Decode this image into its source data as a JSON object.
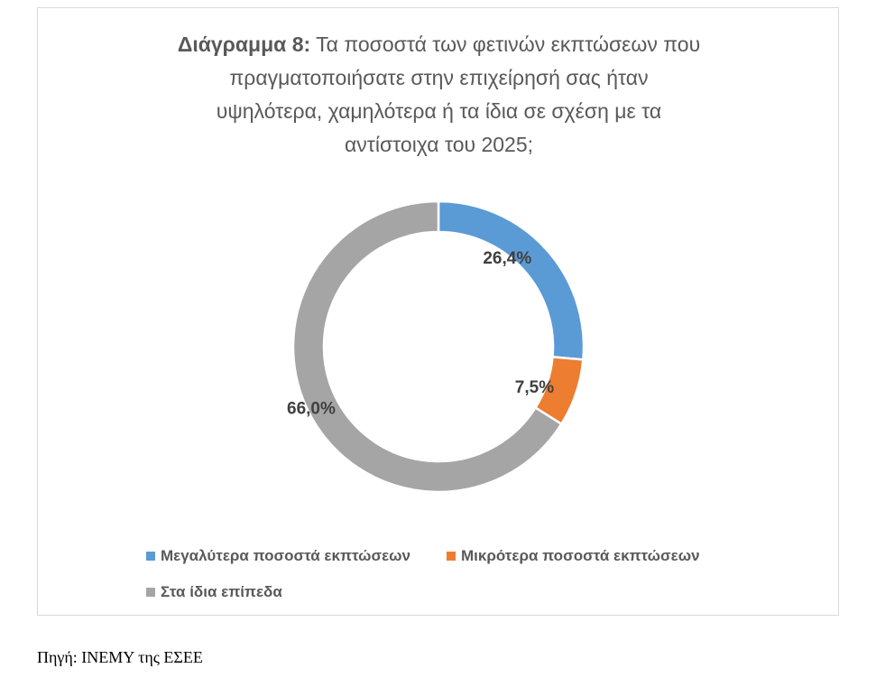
{
  "title": {
    "bold_prefix": "Διάγραμμα 8:",
    "line1_rest": " Τα ποσοστά των φετινών εκπτώσεων που",
    "line2": "πραγματοποιήσατε στην επιχείρησή σας ήταν",
    "line3": "υψηλότερα, χαμηλότερα ή τα ίδια σε σχέση με τα",
    "line4": "αντίστοιχα του 2025;"
  },
  "chart_data": {
    "type": "pie",
    "style": "doughnut",
    "title": "Διάγραμμα 8: Τα ποσοστά των φετινών εκπτώσεων που πραγματοποιήσατε στην επιχείρησή σας ήταν υψηλότερα, χαμηλότερα ή τα ίδια σε σχέση με τα αντίστοιχα του 2025;",
    "categories": [
      "Μεγαλύτερα ποσοστά εκπτώσεων",
      "Μικρότερα ποσοστά εκπτώσεων",
      "Στα ίδια επίπεδα"
    ],
    "values": [
      26.4,
      7.5,
      66.0
    ],
    "data_labels": [
      "26,4%",
      "7,5%",
      "66,0%"
    ],
    "colors": [
      "#5b9bd5",
      "#ed7d31",
      "#a5a5a5"
    ],
    "legend_position": "bottom"
  },
  "legend": [
    {
      "label": "Μεγαλύτερα ποσοστά εκπτώσεων",
      "color": "#5b9bd5"
    },
    {
      "label": "Μικρότερα ποσοστά εκπτώσεων",
      "color": "#ed7d31"
    },
    {
      "label": "Στα ίδια επίπεδα",
      "color": "#a5a5a5"
    }
  ],
  "source": "Πηγή: ΙΝΕΜΥ της ΕΣΕΕ"
}
